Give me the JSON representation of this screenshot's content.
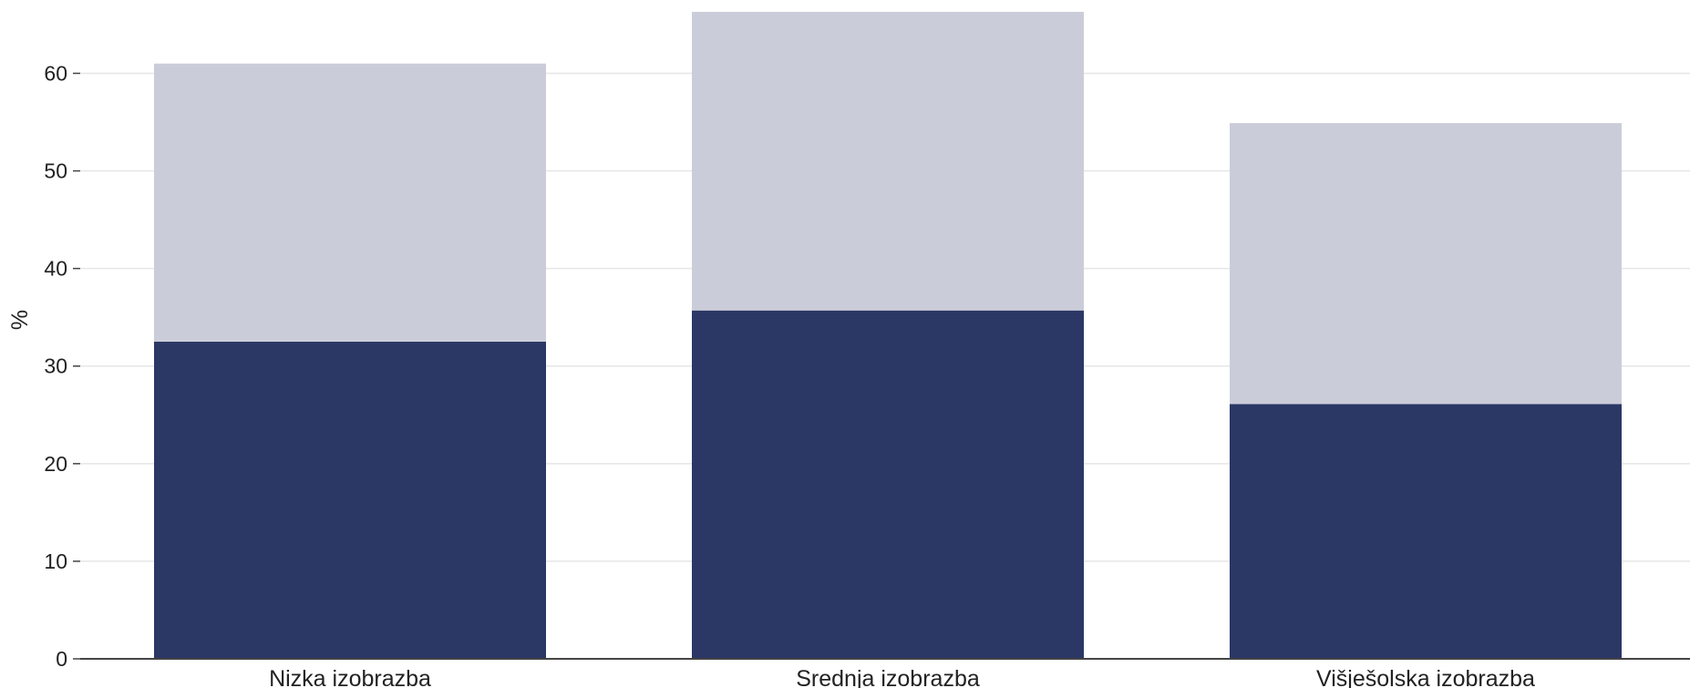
{
  "chart_data": {
    "type": "bar",
    "stacked": true,
    "categories": [
      "Nizka izobrazba",
      "Srednja izobrazba",
      "Višješolska izobrazba"
    ],
    "series": [
      {
        "values": [
          32.5,
          35.7,
          26.1
        ],
        "color": "#2b3765"
      },
      {
        "values": [
          28.5,
          30.6,
          28.8
        ],
        "color": "#cacdd9"
      }
    ],
    "totals": [
      61.0,
      66.3,
      54.9
    ],
    "ylabel": "%",
    "xlabel": "",
    "ylim": [
      0,
      66.3
    ],
    "yticks": [
      0,
      10,
      20,
      30,
      40,
      50,
      60
    ],
    "grid": true
  }
}
